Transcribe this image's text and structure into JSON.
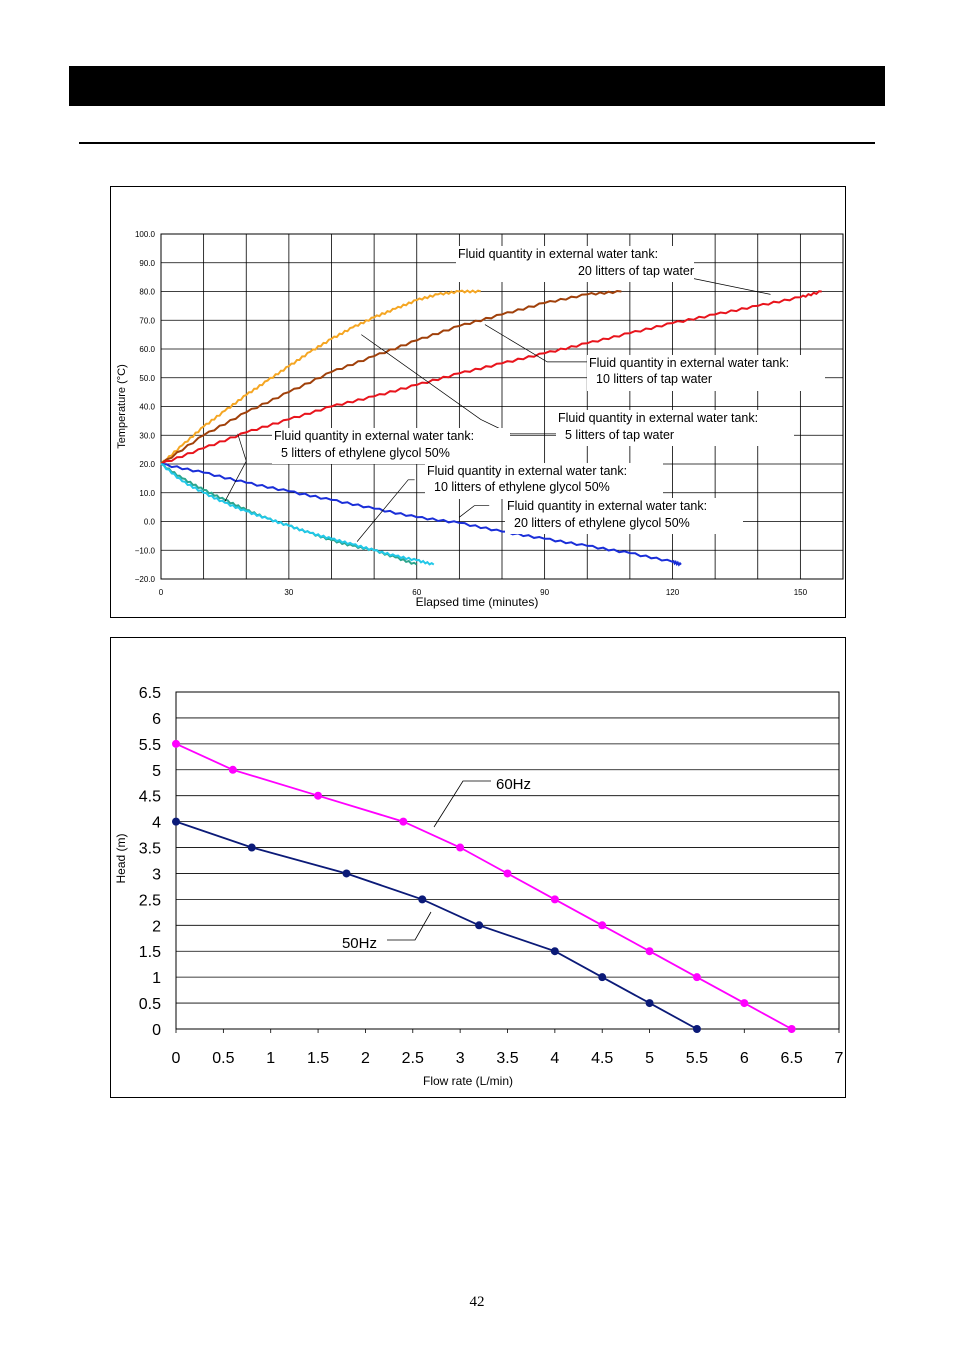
{
  "page": {
    "number": "42"
  },
  "chart_data": [
    {
      "type": "line",
      "title": "",
      "xlabel": "Elapsed time (minutes)",
      "ylabel": "Temperature (°C)",
      "xlim": [
        0,
        160
      ],
      "ylim": [
        -20,
        100
      ],
      "xticks": [
        0,
        30,
        60,
        90,
        120,
        150
      ],
      "yticks": [
        -20,
        -10,
        0,
        10,
        20,
        30,
        40,
        50,
        60,
        70,
        80,
        90,
        100
      ],
      "xtick_labels": [
        "0",
        "30",
        "60",
        "90",
        "120",
        "150"
      ],
      "ytick_labels": [
        "−20.0",
        "−10.0",
        "0.0",
        "10.0",
        "20.0",
        "30.0",
        "40.0",
        "50.0",
        "60.0",
        "70.0",
        "80.0",
        "90.0",
        "100.0"
      ],
      "grid": true,
      "series": [
        {
          "color": "#f5a623",
          "x": [
            0,
            5,
            10,
            15,
            20,
            25,
            30,
            35,
            40,
            45,
            50,
            55,
            60,
            65,
            70,
            75
          ],
          "y": [
            20,
            26.5,
            33,
            38.5,
            44,
            49,
            54,
            59,
            63.5,
            67.5,
            71,
            74,
            77,
            79,
            80,
            80
          ]
        },
        {
          "color": "#a0400a",
          "x": [
            0,
            10,
            20,
            30,
            40,
            50,
            60,
            70,
            80,
            90,
            100,
            108
          ],
          "y": [
            20,
            30,
            38,
            45,
            52,
            57.5,
            63,
            68,
            72,
            76,
            79,
            80
          ]
        },
        {
          "color": "#e8141c",
          "x": [
            0,
            10,
            20,
            30,
            40,
            50,
            60,
            70,
            80,
            90,
            100,
            110,
            120,
            130,
            140,
            150,
            155
          ],
          "y": [
            20,
            25.5,
            31,
            35.5,
            40,
            43.5,
            47.5,
            51.5,
            55,
            58.5,
            62,
            65.5,
            69,
            72,
            75,
            78,
            80
          ]
        },
        {
          "color": "#1a2ed8",
          "x": [
            0,
            10,
            20,
            30,
            40,
            50,
            60,
            70,
            80,
            90,
            100,
            110,
            120,
            122
          ],
          "y": [
            20,
            17,
            13.5,
            10.5,
            7.5,
            4.5,
            1.5,
            -0.5,
            -3.5,
            -6,
            -8.5,
            -11,
            -14,
            -15
          ]
        },
        {
          "color": "#2ca58d",
          "x": [
            0,
            5,
            10,
            15,
            20,
            25,
            30,
            35,
            40,
            45,
            50,
            55,
            60
          ],
          "y": [
            20,
            15,
            11,
            7.5,
            4,
            1,
            -1.5,
            -4,
            -6.5,
            -8.5,
            -10,
            -12.5,
            -15
          ]
        },
        {
          "color": "#22c8e8",
          "x": [
            0,
            5,
            10,
            15,
            20,
            25,
            30,
            35,
            40,
            45,
            50,
            55,
            60,
            64
          ],
          "y": [
            20,
            14,
            10,
            6.5,
            3.5,
            1,
            -1.5,
            -4,
            -6,
            -8,
            -10,
            -12,
            -13.5,
            -15
          ]
        }
      ],
      "annotations": [
        {
          "line1": "Fluid quantity in external water tank:",
          "line2": "20 litters of tap water"
        },
        {
          "line1": "Fluid quantity in external water tank:",
          "line2": "10 litters of tap water"
        },
        {
          "line1": "Fluid quantity in external water tank:",
          "line2": "5 litters of tap water"
        },
        {
          "line1": "Fluid quantity in external water tank:",
          "line2": "5 litters of ethylene glycol 50%"
        },
        {
          "line1": "Fluid quantity in external water tank:",
          "line2": "10 litters of ethylene glycol 50%"
        },
        {
          "line1": "Fluid quantity in external water tank:",
          "line2": "20 litters of ethylene glycol 50%"
        }
      ]
    },
    {
      "type": "line",
      "title": "",
      "xlabel": "Flow rate (L/min)",
      "ylabel": "Head (m)",
      "xlim": [
        0,
        7
      ],
      "ylim": [
        0,
        6.5
      ],
      "xticks": [
        0,
        0.5,
        1,
        1.5,
        2,
        2.5,
        3,
        3.5,
        4,
        4.5,
        5,
        5.5,
        6,
        6.5,
        7
      ],
      "yticks": [
        0,
        0.5,
        1,
        1.5,
        2,
        2.5,
        3,
        3.5,
        4,
        4.5,
        5,
        5.5,
        6,
        6.5
      ],
      "xtick_labels": [
        "0",
        "0.5",
        "1",
        "1.5",
        "2",
        "2.5",
        "3",
        "3.5",
        "4",
        "4.5",
        "5",
        "5.5",
        "6",
        "6.5",
        "7"
      ],
      "ytick_labels": [
        "0",
        "0.5",
        "1",
        "1.5",
        "2",
        "2.5",
        "3",
        "3.5",
        "4",
        "4.5",
        "5",
        "5.5",
        "6",
        "6.5"
      ],
      "grid": "horizontal",
      "series": [
        {
          "name": "60Hz",
          "color": "#ff00ff",
          "x": [
            0,
            0.6,
            1.5,
            2.4,
            3.0,
            3.5,
            4.0,
            4.5,
            5.0,
            5.5,
            6.0,
            6.5
          ],
          "y": [
            5.5,
            5.0,
            4.5,
            4.0,
            3.5,
            3.0,
            2.5,
            2.0,
            1.5,
            1.0,
            0.5,
            0.0
          ]
        },
        {
          "name": "50Hz",
          "color": "#0b1a78",
          "x": [
            0,
            0.8,
            1.8,
            2.6,
            3.2,
            4.0,
            4.5,
            5.0,
            5.5
          ],
          "y": [
            4.0,
            3.5,
            3.0,
            2.5,
            2.0,
            1.5,
            1.0,
            0.5,
            0.0
          ]
        }
      ]
    }
  ]
}
